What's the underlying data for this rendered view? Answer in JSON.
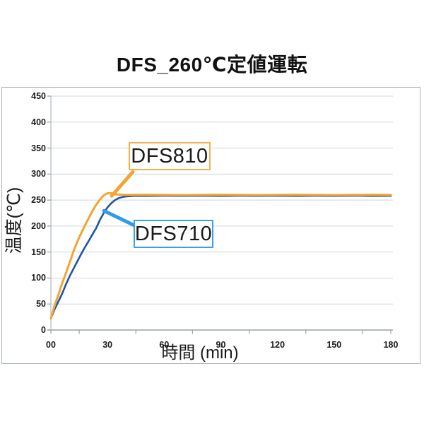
{
  "title": "DFS_260℃定値運転",
  "chart_data": {
    "type": "line",
    "title": "DFS_260℃定値運転",
    "xlabel": "時間 (min)",
    "ylabel": "温度(℃)",
    "xlim": [
      0,
      180
    ],
    "ylim": [
      0,
      450
    ],
    "grid": "horizontal",
    "legend_position": "none (inline callout labels)",
    "y_ticks": [
      450,
      400,
      350,
      300,
      250,
      200,
      150,
      100,
      50,
      0
    ],
    "x_ticks": [
      {
        "label": "00",
        "value": 0
      },
      {
        "label": "30",
        "value": 30
      },
      {
        "label": "60",
        "value": 60
      },
      {
        "label": "90",
        "value": 90
      },
      {
        "label": "120",
        "value": 120
      },
      {
        "label": "150",
        "value": 150
      },
      {
        "label": "180",
        "value": 180
      }
    ],
    "x_tick_marks": [
      0,
      15,
      45,
      75,
      105,
      135,
      165,
      180
    ],
    "series": [
      {
        "name": "DFS710",
        "color": "#1f55a6",
        "width": 2.6,
        "points": [
          [
            0,
            22
          ],
          [
            2,
            40
          ],
          [
            4,
            55
          ],
          [
            6,
            70
          ],
          [
            8,
            88
          ],
          [
            10,
            104
          ],
          [
            12,
            118
          ],
          [
            14,
            132
          ],
          [
            16,
            146
          ],
          [
            18,
            159
          ],
          [
            20,
            171
          ],
          [
            22,
            184
          ],
          [
            24,
            196
          ],
          [
            26,
            212
          ],
          [
            28,
            225
          ],
          [
            30,
            236
          ],
          [
            32,
            244
          ],
          [
            34,
            250
          ],
          [
            36,
            254
          ],
          [
            38,
            256
          ],
          [
            40,
            257
          ],
          [
            42,
            257.5
          ],
          [
            44,
            258
          ],
          [
            50,
            258
          ],
          [
            60,
            258.3
          ],
          [
            70,
            258
          ],
          [
            80,
            258.4
          ],
          [
            90,
            258
          ],
          [
            100,
            258.3
          ],
          [
            110,
            258
          ],
          [
            120,
            258.4
          ],
          [
            130,
            258
          ],
          [
            140,
            258.3
          ],
          [
            150,
            258
          ],
          [
            160,
            258.4
          ],
          [
            170,
            258
          ],
          [
            180,
            258.2
          ]
        ]
      },
      {
        "name": "DFS810",
        "color": "#f2a531",
        "width": 3,
        "points": [
          [
            0,
            22
          ],
          [
            2,
            47
          ],
          [
            4,
            68
          ],
          [
            6,
            90
          ],
          [
            8,
            110
          ],
          [
            10,
            130
          ],
          [
            12,
            152
          ],
          [
            14,
            170
          ],
          [
            16,
            186
          ],
          [
            18,
            201
          ],
          [
            20,
            215
          ],
          [
            22,
            229
          ],
          [
            24,
            241
          ],
          [
            26,
            251
          ],
          [
            28,
            259
          ],
          [
            29,
            261.5
          ],
          [
            30,
            263
          ],
          [
            31,
            263.5
          ],
          [
            32,
            263
          ],
          [
            33,
            262
          ],
          [
            34,
            261
          ],
          [
            36,
            260.5
          ],
          [
            40,
            260
          ],
          [
            50,
            260.4
          ],
          [
            60,
            260
          ],
          [
            70,
            259.6
          ],
          [
            80,
            260
          ],
          [
            90,
            260.4
          ],
          [
            100,
            260
          ],
          [
            110,
            259.6
          ],
          [
            120,
            260
          ],
          [
            130,
            260.4
          ],
          [
            140,
            260
          ],
          [
            150,
            259.6
          ],
          [
            160,
            260
          ],
          [
            170,
            260.4
          ],
          [
            180,
            260
          ]
        ]
      }
    ],
    "annotations": [
      {
        "label": "DFS810",
        "border_color": "#f6af4b",
        "leader_color": "#f2a531",
        "anchor": [
          32.2,
          258
        ],
        "attach": [
          43.4,
          304
        ],
        "box_t": [
          41.2,
          84.6
        ],
        "box_temp": [
          306,
          361
        ]
      },
      {
        "label": "DFS710",
        "border_color": "#35a0ec",
        "leader_color": "#2e9beb",
        "anchor": [
          28.1,
          229.5
        ],
        "attach": [
          44.9,
          200
        ],
        "box_t": [
          43.8,
          86.1
        ],
        "box_temp": [
          158,
          212
        ]
      }
    ],
    "style": {
      "gridline_color": "#cfd5db",
      "y_axis_color": "#b2bac2",
      "x_axis_color": "#98a2ac",
      "tick_color": "#98a2ac",
      "frame_color": "#a9b2bb",
      "callout_bg": "#ffffff",
      "text_color": "#1a1a1a"
    }
  }
}
